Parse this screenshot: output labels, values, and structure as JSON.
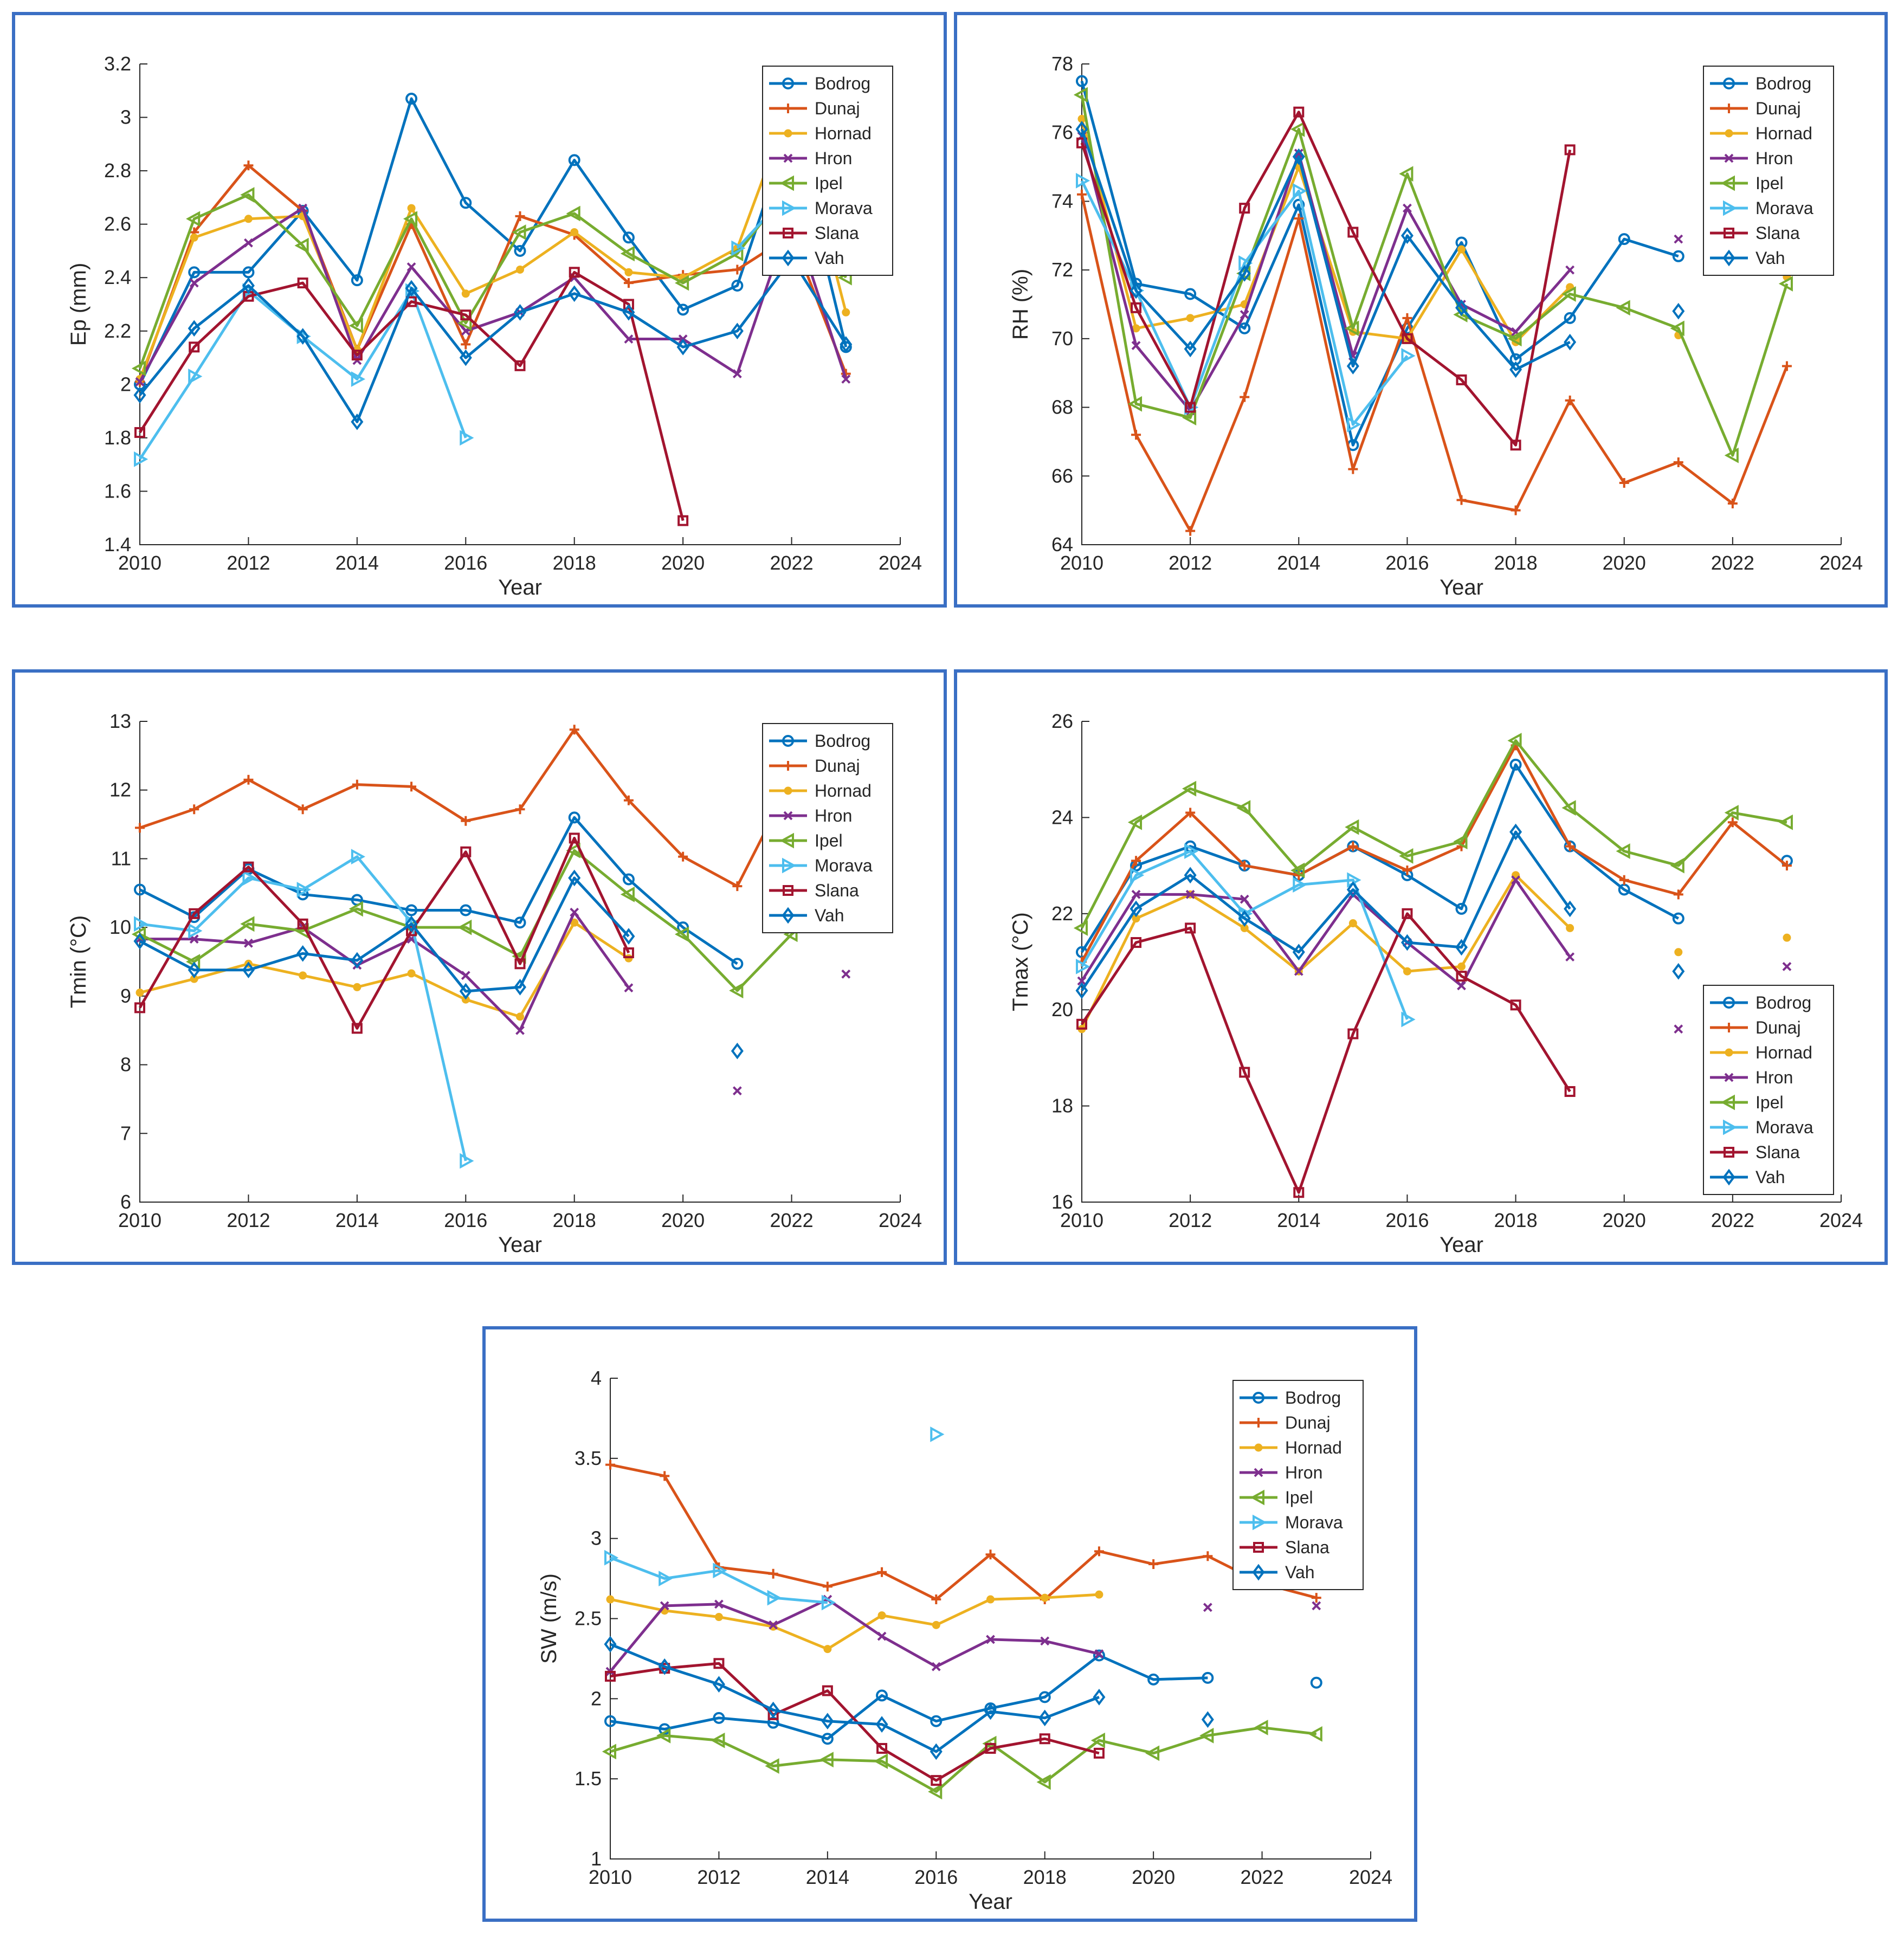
{
  "series_styles": [
    {
      "name": "Bodrog",
      "color": "#0072BD",
      "marker": "o"
    },
    {
      "name": "Dunaj",
      "color": "#D95319",
      "marker": "+"
    },
    {
      "name": "Hornad",
      "color": "#EDB120",
      "marker": "."
    },
    {
      "name": "Hron",
      "color": "#7E2F8E",
      "marker": "x"
    },
    {
      "name": "Ipel",
      "color": "#77AC30",
      "marker": "<"
    },
    {
      "name": "Morava",
      "color": "#4DBEEE",
      "marker": ">"
    },
    {
      "name": "Slana",
      "color": "#A2142F",
      "marker": "s"
    },
    {
      "name": "Vah",
      "color": "#0072BD",
      "marker": "d"
    }
  ],
  "chart_data": [
    {
      "id": "ep",
      "type": "line",
      "xlabel": "Year",
      "ylabel": "Ep (mm)",
      "xlim": [
        2010,
        2024
      ],
      "ylim": [
        1.4,
        3.2
      ],
      "xticks": [
        2010,
        2012,
        2014,
        2016,
        2018,
        2020,
        2022,
        2024
      ],
      "yticks": [
        1.4,
        1.6,
        1.8,
        2,
        2.2,
        2.4,
        2.6,
        2.8,
        3,
        3.2
      ],
      "yticklabels": [
        "1.4",
        "1.6",
        "1.8",
        "2",
        "2.2",
        "2.4",
        "2.6",
        "2.8",
        "3",
        "3.2"
      ],
      "legend_position": "top-right",
      "x": [
        2010,
        2011,
        2012,
        2013,
        2014,
        2015,
        2016,
        2017,
        2018,
        2019,
        2020,
        2021,
        2022,
        2023
      ],
      "series": [
        {
          "name": "Bodrog",
          "values": [
            2.0,
            2.42,
            2.42,
            2.65,
            2.39,
            3.07,
            2.68,
            2.5,
            2.84,
            2.55,
            2.28,
            2.37,
            2.98,
            2.14
          ]
        },
        {
          "name": "Dunaj",
          "values": [
            2.01,
            2.57,
            2.82,
            2.65,
            2.13,
            2.6,
            2.15,
            2.63,
            2.56,
            2.38,
            2.41,
            2.43,
            2.56,
            2.04
          ]
        },
        {
          "name": "Hornad",
          "values": [
            2.02,
            2.55,
            2.62,
            2.63,
            2.13,
            2.66,
            2.34,
            2.43,
            2.57,
            2.42,
            2.4,
            2.51,
            3.06,
            2.27
          ]
        },
        {
          "name": "Hron",
          "values": [
            2.01,
            2.38,
            2.53,
            2.66,
            2.09,
            2.44,
            2.2,
            2.27,
            2.4,
            2.17,
            2.17,
            2.04,
            2.64,
            2.02
          ]
        },
        {
          "name": "Ipel",
          "values": [
            2.06,
            2.62,
            2.71,
            2.52,
            2.22,
            2.62,
            2.23,
            2.57,
            2.64,
            2.49,
            2.38,
            2.49,
            2.75,
            2.4
          ]
        },
        {
          "name": "Morava",
          "values": [
            1.72,
            2.03,
            2.35,
            2.18,
            2.02,
            2.35,
            1.8,
            null,
            null,
            null,
            null,
            2.51,
            2.73,
            null
          ]
        },
        {
          "name": "Slana",
          "values": [
            1.82,
            2.14,
            2.33,
            2.38,
            2.11,
            2.31,
            2.26,
            2.07,
            2.42,
            2.3,
            1.49,
            null,
            2.73,
            null
          ]
        },
        {
          "name": "Vah",
          "values": [
            1.96,
            2.21,
            2.37,
            2.18,
            1.86,
            2.36,
            2.1,
            2.27,
            2.34,
            2.27,
            2.14,
            2.2,
            2.47,
            2.15
          ]
        }
      ]
    },
    {
      "id": "rh",
      "type": "line",
      "xlabel": "Year",
      "ylabel": "RH (%)",
      "xlim": [
        2010,
        2024
      ],
      "ylim": [
        64,
        78
      ],
      "xticks": [
        2010,
        2012,
        2014,
        2016,
        2018,
        2020,
        2022,
        2024
      ],
      "yticks": [
        64,
        66,
        68,
        70,
        72,
        74,
        76,
        78
      ],
      "yticklabels": [
        "64",
        "66",
        "68",
        "70",
        "72",
        "74",
        "76",
        "78"
      ],
      "legend_position": "top-right",
      "x": [
        2010,
        2011,
        2012,
        2013,
        2014,
        2015,
        2016,
        2017,
        2018,
        2019,
        2020,
        2021,
        2022,
        2023
      ],
      "series": [
        {
          "name": "Bodrog",
          "values": [
            77.5,
            71.6,
            71.3,
            70.3,
            73.9,
            66.9,
            70.3,
            72.8,
            69.4,
            70.6,
            72.9,
            72.4,
            null,
            null
          ]
        },
        {
          "name": "Dunaj",
          "values": [
            74.2,
            67.2,
            64.4,
            68.3,
            73.5,
            66.2,
            70.6,
            65.3,
            65.0,
            68.2,
            65.8,
            66.4,
            65.2,
            69.2
          ]
        },
        {
          "name": "Hornad",
          "values": [
            76.4,
            70.3,
            70.6,
            71.0,
            75.0,
            70.2,
            70.0,
            72.6,
            69.9,
            71.5,
            null,
            70.1,
            null,
            71.8
          ]
        },
        {
          "name": "Hron",
          "values": [
            75.9,
            69.8,
            67.9,
            70.7,
            75.4,
            69.5,
            73.8,
            71.0,
            70.2,
            72.0,
            null,
            72.9,
            null,
            null
          ]
        },
        {
          "name": "Ipel",
          "values": [
            77.1,
            68.1,
            67.7,
            71.9,
            76.1,
            70.3,
            74.8,
            70.7,
            70.0,
            71.3,
            70.9,
            70.3,
            66.6,
            71.6
          ]
        },
        {
          "name": "Morava",
          "values": [
            74.6,
            71.4,
            68.0,
            72.2,
            74.3,
            67.5,
            69.5,
            null,
            null,
            null,
            null,
            null,
            null,
            null
          ]
        },
        {
          "name": "Slana",
          "values": [
            75.7,
            70.9,
            68.0,
            73.8,
            76.6,
            73.1,
            70.0,
            68.8,
            66.9,
            75.5,
            null,
            null,
            null,
            null
          ]
        },
        {
          "name": "Vah",
          "values": [
            76.1,
            71.4,
            69.7,
            71.9,
            75.3,
            69.2,
            73.0,
            70.9,
            69.1,
            69.9,
            null,
            70.8,
            null,
            null
          ]
        }
      ]
    },
    {
      "id": "tmin",
      "type": "line",
      "xlabel": "Year",
      "ylabel": "Tmin (°C)",
      "xlim": [
        2010,
        2024
      ],
      "ylim": [
        6,
        13
      ],
      "xticks": [
        2010,
        2012,
        2014,
        2016,
        2018,
        2020,
        2022,
        2024
      ],
      "yticks": [
        6,
        7,
        8,
        9,
        10,
        11,
        12,
        13
      ],
      "yticklabels": [
        "6",
        "7",
        "8",
        "9",
        "10",
        "11",
        "12",
        "13"
      ],
      "legend_position": "top-right",
      "x": [
        2010,
        2011,
        2012,
        2013,
        2014,
        2015,
        2016,
        2017,
        2018,
        2019,
        2020,
        2021,
        2022,
        2023
      ],
      "series": [
        {
          "name": "Bodrog",
          "values": [
            10.55,
            10.15,
            10.85,
            10.48,
            10.4,
            10.25,
            10.25,
            10.07,
            11.6,
            10.7,
            10.0,
            9.47,
            null,
            11.18
          ]
        },
        {
          "name": "Dunaj",
          "values": [
            11.45,
            11.72,
            12.15,
            11.72,
            12.08,
            12.05,
            11.55,
            11.72,
            12.88,
            11.85,
            11.03,
            10.6,
            12.15,
            11.35
          ]
        },
        {
          "name": "Hornad",
          "values": [
            9.05,
            9.25,
            9.47,
            9.3,
            9.13,
            9.33,
            8.95,
            8.7,
            10.07,
            9.55,
            null,
            null,
            null,
            10.23
          ]
        },
        {
          "name": "Hron",
          "values": [
            9.83,
            9.83,
            9.77,
            10.0,
            9.45,
            9.83,
            9.3,
            8.5,
            10.22,
            9.12,
            null,
            7.62,
            null,
            9.32
          ]
        },
        {
          "name": "Ipel",
          "values": [
            9.9,
            9.5,
            10.05,
            9.95,
            10.27,
            10.0,
            10.0,
            9.58,
            11.12,
            10.48,
            9.9,
            9.08,
            9.9,
            10.58
          ]
        },
        {
          "name": "Morava",
          "values": [
            10.05,
            9.95,
            10.72,
            10.55,
            11.03,
            10.07,
            6.6,
            null,
            null,
            null,
            null,
            null,
            null,
            null
          ]
        },
        {
          "name": "Slana",
          "values": [
            8.83,
            10.2,
            10.88,
            10.05,
            8.53,
            9.95,
            11.1,
            9.47,
            11.3,
            9.63,
            null,
            null,
            null,
            null
          ]
        },
        {
          "name": "Vah",
          "values": [
            9.8,
            9.38,
            9.38,
            9.62,
            9.52,
            10.05,
            9.07,
            9.13,
            10.72,
            9.87,
            null,
            8.2,
            null,
            null
          ]
        }
      ]
    },
    {
      "id": "tmax",
      "type": "line",
      "xlabel": "Year",
      "ylabel": "Tmax (°C)",
      "xlim": [
        2010,
        2024
      ],
      "ylim": [
        16,
        26
      ],
      "xticks": [
        2010,
        2012,
        2014,
        2016,
        2018,
        2020,
        2022,
        2024
      ],
      "yticks": [
        16,
        18,
        20,
        22,
        24,
        26
      ],
      "yticklabels": [
        "16",
        "18",
        "20",
        "22",
        "24",
        "26"
      ],
      "legend_position": "bottom-right",
      "x": [
        2010,
        2011,
        2012,
        2013,
        2014,
        2015,
        2016,
        2017,
        2018,
        2019,
        2020,
        2021,
        2022,
        2023
      ],
      "series": [
        {
          "name": "Bodrog",
          "values": [
            21.2,
            23.0,
            23.4,
            23.0,
            22.8,
            23.4,
            22.8,
            22.1,
            25.1,
            23.4,
            22.5,
            21.9,
            null,
            23.1
          ]
        },
        {
          "name": "Dunaj",
          "values": [
            21.0,
            23.1,
            24.1,
            23.0,
            22.8,
            23.4,
            22.9,
            23.4,
            25.5,
            23.4,
            22.7,
            22.4,
            23.9,
            23.0
          ]
        },
        {
          "name": "Hornad",
          "values": [
            19.6,
            21.9,
            22.4,
            21.7,
            20.8,
            21.8,
            20.8,
            20.9,
            22.8,
            21.7,
            null,
            21.2,
            null,
            21.5
          ]
        },
        {
          "name": "Hron",
          "values": [
            20.6,
            22.4,
            22.4,
            22.3,
            20.8,
            22.4,
            21.4,
            20.5,
            22.7,
            21.1,
            null,
            19.6,
            null,
            20.9
          ]
        },
        {
          "name": "Ipel",
          "values": [
            21.7,
            23.9,
            24.6,
            24.2,
            22.9,
            23.8,
            23.2,
            23.5,
            25.6,
            24.2,
            23.3,
            23.0,
            24.1,
            23.9
          ]
        },
        {
          "name": "Morava",
          "values": [
            20.9,
            22.8,
            23.3,
            22.0,
            22.6,
            22.7,
            19.8,
            null,
            null,
            null,
            null,
            null,
            null,
            null
          ]
        },
        {
          "name": "Slana",
          "values": [
            19.7,
            21.4,
            21.7,
            18.7,
            16.2,
            19.5,
            22.0,
            20.7,
            20.1,
            18.3,
            null,
            null,
            null,
            null
          ]
        },
        {
          "name": "Vah",
          "values": [
            20.4,
            22.1,
            22.8,
            21.9,
            21.2,
            22.5,
            21.4,
            21.3,
            23.7,
            22.1,
            null,
            20.8,
            null,
            null
          ]
        }
      ]
    },
    {
      "id": "sw",
      "type": "line",
      "xlabel": "Year",
      "ylabel": "SW (m/s)",
      "xlim": [
        2010,
        2024
      ],
      "ylim": [
        1,
        4
      ],
      "xticks": [
        2010,
        2012,
        2014,
        2016,
        2018,
        2020,
        2022,
        2024
      ],
      "yticks": [
        1,
        1.5,
        2,
        2.5,
        3,
        3.5,
        4
      ],
      "yticklabels": [
        "1",
        "1.5",
        "2",
        "2.5",
        "3",
        "3.5",
        "4"
      ],
      "legend_position": "top-right",
      "x": [
        2010,
        2011,
        2012,
        2013,
        2014,
        2015,
        2016,
        2017,
        2018,
        2019,
        2020,
        2021,
        2022,
        2023
      ],
      "series": [
        {
          "name": "Bodrog",
          "values": [
            1.86,
            1.81,
            1.88,
            1.85,
            1.75,
            2.02,
            1.86,
            1.94,
            2.01,
            2.27,
            2.12,
            2.13,
            null,
            2.1
          ]
        },
        {
          "name": "Dunaj",
          "values": [
            3.46,
            3.39,
            2.82,
            2.78,
            2.7,
            2.79,
            2.62,
            2.9,
            2.62,
            2.92,
            2.84,
            2.89,
            2.72,
            2.63
          ]
        },
        {
          "name": "Hornad",
          "values": [
            2.62,
            2.55,
            2.51,
            2.45,
            2.31,
            2.52,
            2.46,
            2.62,
            2.63,
            2.65,
            null,
            null,
            null,
            null
          ]
        },
        {
          "name": "Hron",
          "values": [
            2.17,
            2.58,
            2.59,
            2.46,
            2.62,
            2.39,
            2.2,
            2.37,
            2.36,
            2.28,
            null,
            2.57,
            null,
            2.58
          ]
        },
        {
          "name": "Ipel",
          "values": [
            1.67,
            1.77,
            1.74,
            1.58,
            1.62,
            1.61,
            1.42,
            1.72,
            1.48,
            1.74,
            1.66,
            1.77,
            1.82,
            1.78
          ]
        },
        {
          "name": "Morava",
          "values": [
            2.88,
            2.75,
            2.8,
            2.63,
            2.6,
            null,
            3.65,
            null,
            null,
            null,
            null,
            null,
            null,
            null
          ]
        },
        {
          "name": "Slana",
          "values": [
            2.14,
            2.19,
            2.22,
            1.9,
            2.05,
            1.69,
            1.49,
            1.69,
            1.75,
            1.66,
            null,
            null,
            null,
            null
          ]
        },
        {
          "name": "Vah",
          "values": [
            2.34,
            2.2,
            2.09,
            1.93,
            1.86,
            1.84,
            1.67,
            1.92,
            1.88,
            2.01,
            null,
            1.87,
            null,
            null
          ]
        }
      ]
    }
  ]
}
